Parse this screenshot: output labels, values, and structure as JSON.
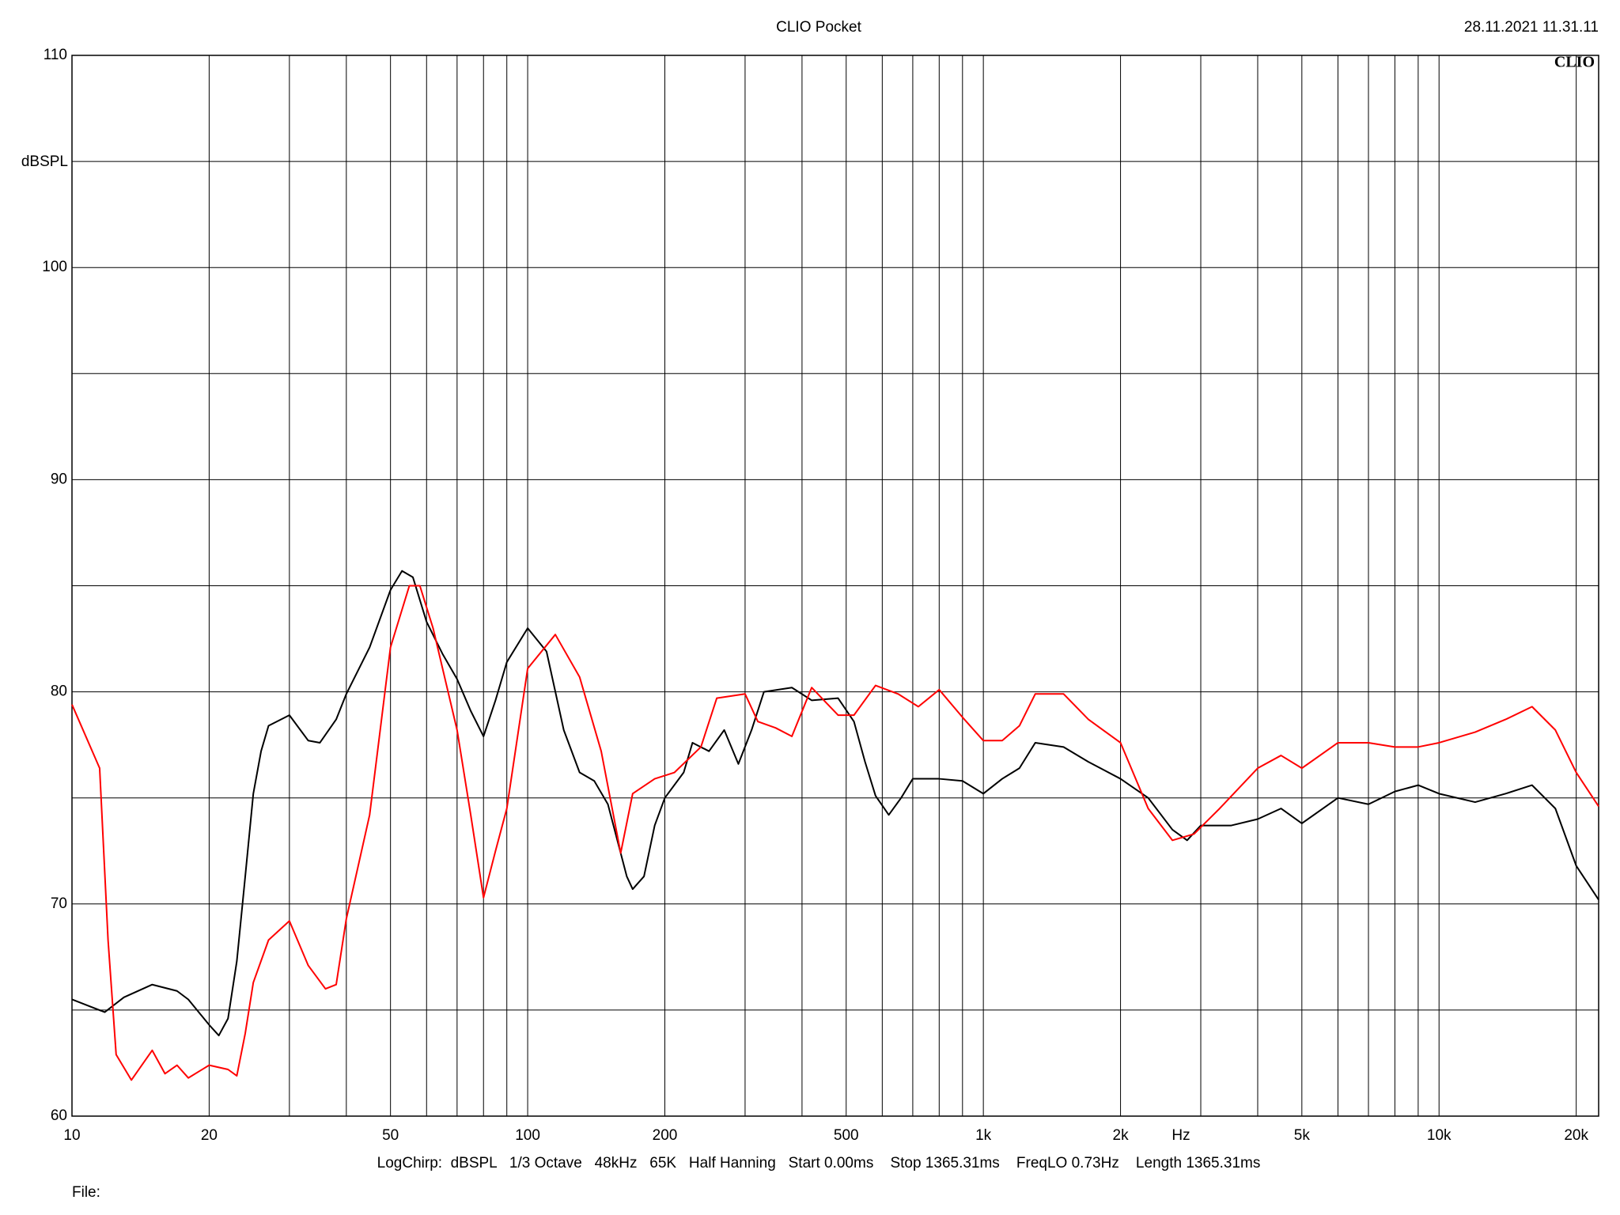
{
  "chart_data": {
    "type": "line",
    "title": "CLIO Pocket",
    "timestamp": "28.11.2021 11.31.11",
    "logo": "CLIO",
    "ylabel": "dBSPL",
    "xlabel": "Hz",
    "footer": "LogChirp:  dBSPL   1/3 Octave   48kHz   65K   Half Hanning   Start 0.00ms    Stop 1365.31ms    FreqLO 0.73Hz    Length 1365.31ms",
    "file_label": "File:",
    "xscale": "log",
    "grid": true,
    "xlim": [
      10,
      22400
    ],
    "ylim": [
      60,
      110
    ],
    "yticks": [
      60,
      70,
      80,
      90,
      100,
      110
    ],
    "ygrid": [
      65,
      75,
      85,
      95,
      105
    ],
    "xticks": [
      10,
      20,
      50,
      100,
      200,
      500,
      {
        "value": 1000,
        "label": "1k"
      },
      {
        "value": 2000,
        "label": "2k"
      },
      {
        "value": 5000,
        "label": "5k"
      },
      {
        "value": 10000,
        "label": "10k"
      },
      {
        "value": 20000,
        "label": "20k"
      }
    ],
    "xgrid": [
      30,
      40,
      60,
      70,
      80,
      90,
      300,
      400,
      600,
      700,
      800,
      900,
      3000,
      4000,
      6000,
      7000,
      8000,
      9000
    ],
    "series": [
      {
        "color": "#000000",
        "x": [
          10,
          11.8,
          13,
          15,
          17,
          18,
          20,
          21,
          22,
          23,
          24,
          25,
          26,
          27,
          30,
          33,
          35,
          38,
          40,
          45,
          50,
          53,
          56,
          60,
          65,
          70,
          75,
          80,
          85,
          90,
          100,
          110,
          120,
          130,
          140,
          150,
          165,
          170,
          180,
          190,
          200,
          220,
          230,
          250,
          270,
          290,
          310,
          330,
          380,
          420,
          480,
          520,
          550,
          580,
          620,
          660,
          700,
          800,
          900,
          1000,
          1100,
          1200,
          1300,
          1500,
          1700,
          2000,
          2300,
          2600,
          2800,
          3000,
          3500,
          4000,
          4500,
          5000,
          6000,
          7000,
          8000,
          9000,
          10000,
          12000,
          14000,
          16000,
          18000,
          20000,
          22400
        ],
        "values": [
          65.5,
          64.9,
          65.6,
          66.2,
          65.9,
          65.5,
          64.3,
          63.8,
          64.6,
          67.3,
          71.3,
          75.2,
          77.2,
          78.4,
          78.9,
          77.7,
          77.6,
          78.7,
          79.9,
          82.1,
          84.8,
          85.7,
          85.4,
          83.3,
          81.8,
          80.6,
          79.1,
          77.9,
          79.6,
          81.4,
          83.0,
          81.9,
          78.2,
          76.2,
          75.8,
          74.7,
          71.3,
          70.7,
          71.3,
          73.7,
          75.0,
          76.2,
          77.6,
          77.2,
          78.2,
          76.6,
          78.2,
          80.0,
          80.2,
          79.6,
          79.7,
          78.6,
          76.7,
          75.1,
          74.2,
          75.0,
          75.9,
          75.9,
          75.8,
          75.2,
          75.9,
          76.4,
          77.6,
          77.4,
          76.7,
          75.9,
          75.0,
          73.5,
          73.0,
          73.7,
          73.7,
          74.0,
          74.5,
          73.8,
          75.0,
          74.7,
          75.3,
          75.6,
          75.2,
          74.8,
          75.2,
          75.6,
          74.5,
          71.8,
          70.2
        ]
      },
      {
        "color": "#ff0000",
        "x": [
          10,
          11.5,
          12,
          12.5,
          13.5,
          15,
          16,
          17,
          18,
          20,
          22,
          23,
          24,
          25,
          27,
          30,
          33,
          36,
          38,
          40,
          45,
          50,
          55,
          58,
          62,
          70,
          75,
          80,
          85,
          90,
          100,
          115,
          130,
          145,
          160,
          170,
          190,
          210,
          240,
          260,
          300,
          320,
          350,
          380,
          420,
          480,
          520,
          580,
          650,
          720,
          800,
          900,
          1000,
          1100,
          1200,
          1300,
          1500,
          1700,
          2000,
          2300,
          2600,
          2900,
          3300,
          4000,
          4500,
          5000,
          6000,
          7000,
          8000,
          9000,
          10000,
          12000,
          14000,
          16000,
          18000,
          20000,
          22400
        ],
        "values": [
          79.4,
          76.4,
          68.3,
          62.9,
          61.7,
          63.1,
          62.0,
          62.4,
          61.8,
          62.4,
          62.2,
          61.9,
          63.9,
          66.3,
          68.3,
          69.2,
          67.1,
          66.0,
          66.2,
          69.3,
          74.2,
          82.1,
          85.0,
          85.0,
          83.0,
          78.2,
          74.2,
          70.3,
          72.5,
          74.5,
          81.1,
          82.7,
          80.7,
          77.2,
          72.4,
          75.2,
          75.9,
          76.2,
          77.4,
          79.7,
          79.9,
          78.6,
          78.3,
          77.9,
          80.2,
          78.9,
          78.9,
          80.3,
          79.9,
          79.3,
          80.1,
          78.8,
          77.7,
          77.7,
          78.4,
          79.9,
          79.9,
          78.7,
          77.6,
          74.5,
          73.0,
          73.3,
          74.5,
          76.4,
          77.0,
          76.4,
          77.6,
          77.6,
          77.4,
          77.4,
          77.6,
          78.1,
          78.7,
          79.3,
          78.2,
          76.2,
          74.6
        ]
      }
    ]
  }
}
